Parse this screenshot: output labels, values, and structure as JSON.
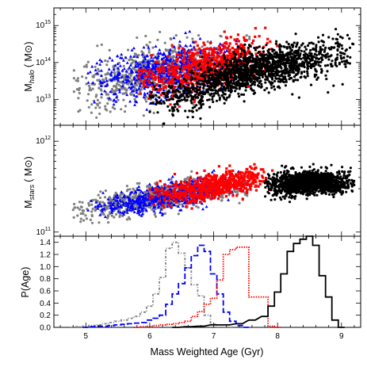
{
  "chart_data": [
    {
      "panel": "top",
      "type": "scatter",
      "ylabel_main": "M",
      "ylabel_sub": "halo",
      "ylabel_unit": "( M⊙)",
      "yscale": "log",
      "ylim": [
        2000000000000.0,
        3000000000000000.0
      ],
      "yticks": [
        {
          "value": 10000000000000.0,
          "base": "10",
          "exp": "13"
        },
        {
          "value": 100000000000000.0,
          "base": "10",
          "exp": "14"
        },
        {
          "value": 1000000000000000.0,
          "base": "10",
          "exp": "15"
        }
      ],
      "xlim": [
        4.5,
        9.3
      ],
      "series": [
        {
          "color": "#808080",
          "marker": "dot",
          "age_range": [
            4.8,
            7.6
          ],
          "n": 900,
          "trend": [
            [
              5.0,
              13.35
            ],
            [
              6.5,
              13.85
            ],
            [
              7.5,
              14.0
            ]
          ],
          "scatter": 0.35
        },
        {
          "color": "#0000ff",
          "marker": "triangle",
          "age_range": [
            5.0,
            7.5
          ],
          "n": 600,
          "trend": [
            [
              5.3,
              13.5
            ],
            [
              6.8,
              13.95
            ],
            [
              7.4,
              14.05
            ]
          ],
          "scatter": 0.35
        },
        {
          "color": "#ff0000",
          "marker": "square",
          "age_range": [
            5.8,
            8.0
          ],
          "n": 650,
          "trend": [
            [
              6.2,
              13.6
            ],
            [
              7.3,
              14.1
            ],
            [
              7.9,
              14.2
            ]
          ],
          "scatter": 0.3
        },
        {
          "color": "#000000",
          "marker": "dot",
          "age_range": [
            6.0,
            9.2
          ],
          "n": 1600,
          "trend": [
            [
              6.2,
              13.0
            ],
            [
              7.8,
              13.9
            ],
            [
              9.0,
              14.2
            ]
          ],
          "scatter": 0.28
        }
      ]
    },
    {
      "panel": "middle",
      "type": "scatter",
      "ylabel_main": "M",
      "ylabel_sub": "stars",
      "ylabel_unit": "( M⊙)",
      "yscale": "log",
      "ylim": [
        90000000000.0,
        1500000000000.0
      ],
      "yticks": [
        {
          "value": 100000000000.0,
          "base": "10",
          "exp": "11"
        },
        {
          "value": 1000000000000.0,
          "base": "10",
          "exp": "12"
        }
      ],
      "xlim": [
        4.5,
        9.3
      ],
      "series": [
        {
          "color": "#808080",
          "marker": "dot",
          "age_range": [
            4.8,
            7.6
          ],
          "n": 900,
          "trend": [
            [
              4.8,
              11.23
            ],
            [
              6.5,
              11.42
            ],
            [
              7.5,
              11.52
            ]
          ],
          "scatter": 0.07
        },
        {
          "color": "#0000ff",
          "marker": "triangle",
          "age_range": [
            5.0,
            7.5
          ],
          "n": 600,
          "trend": [
            [
              5.0,
              11.25
            ],
            [
              6.8,
              11.45
            ],
            [
              7.4,
              11.55
            ]
          ],
          "scatter": 0.07
        },
        {
          "color": "#ff0000",
          "marker": "square",
          "age_range": [
            6.0,
            8.0
          ],
          "n": 650,
          "trend": [
            [
              6.2,
              11.4
            ],
            [
              7.4,
              11.56
            ],
            [
              7.9,
              11.6
            ]
          ],
          "scatter": 0.07
        },
        {
          "color": "#000000",
          "marker": "dot",
          "age_range": [
            7.8,
            9.2
          ],
          "n": 1400,
          "trend": [
            [
              7.8,
              11.5
            ],
            [
              8.5,
              11.55
            ],
            [
              9.1,
              11.55
            ]
          ],
          "scatter": 0.06
        }
      ]
    },
    {
      "panel": "bottom",
      "type": "line",
      "ylabel": "P(Age)",
      "xlabel": "Mass Weighted Age (Gyr)",
      "xlim": [
        4.5,
        9.3
      ],
      "ylim": [
        0,
        1.5
      ],
      "xticks": [
        5,
        6,
        7,
        8,
        9
      ],
      "yticks": [
        0.0,
        0.2,
        0.4,
        0.6,
        0.8,
        1.0,
        1.2,
        1.4
      ],
      "series": [
        {
          "color": "#808080",
          "style": "dotdash",
          "x": [
            4.8,
            4.9,
            5.0,
            5.1,
            5.2,
            5.3,
            5.4,
            5.5,
            5.6,
            5.7,
            5.8,
            5.9,
            6.0,
            6.1,
            6.2,
            6.3,
            6.4,
            6.5,
            6.6,
            6.7,
            6.8,
            6.9,
            7.0,
            7.1,
            7.2,
            7.3
          ],
          "y": [
            0.0,
            0.01,
            0.02,
            0.03,
            0.04,
            0.06,
            0.08,
            0.1,
            0.12,
            0.15,
            0.18,
            0.25,
            0.35,
            0.55,
            0.82,
            1.3,
            1.4,
            1.22,
            0.98,
            0.7,
            0.52,
            0.2,
            0.05,
            0.0,
            0.0,
            0.0
          ]
        },
        {
          "color": "#0000ff",
          "style": "dashed",
          "x": [
            5.0,
            5.1,
            5.2,
            5.3,
            5.4,
            5.5,
            5.6,
            5.7,
            5.8,
            5.9,
            6.0,
            6.1,
            6.2,
            6.3,
            6.4,
            6.5,
            6.6,
            6.7,
            6.8,
            6.9,
            7.0,
            7.1,
            7.2,
            7.3,
            7.4,
            7.5
          ],
          "y": [
            0.0,
            0.01,
            0.02,
            0.02,
            0.03,
            0.04,
            0.05,
            0.06,
            0.07,
            0.08,
            0.12,
            0.15,
            0.2,
            0.38,
            0.55,
            0.72,
            0.98,
            1.18,
            1.35,
            1.25,
            0.88,
            0.55,
            0.25,
            0.1,
            0.03,
            0.0
          ]
        },
        {
          "color": "#ff0000",
          "style": "dotted",
          "x": [
            5.8,
            5.9,
            6.0,
            6.1,
            6.2,
            6.3,
            6.4,
            6.5,
            6.6,
            6.7,
            6.8,
            6.9,
            7.0,
            7.1,
            7.2,
            7.3,
            7.4,
            7.5,
            7.6,
            7.7,
            7.8,
            7.9,
            8.0
          ],
          "y": [
            0.0,
            0.01,
            0.02,
            0.03,
            0.04,
            0.05,
            0.06,
            0.08,
            0.1,
            0.18,
            0.26,
            0.38,
            0.48,
            0.78,
            1.2,
            1.28,
            1.32,
            1.32,
            0.5,
            0.5,
            0.5,
            0.02,
            0.0
          ]
        },
        {
          "color": "#000000",
          "style": "solid",
          "x": [
            6.4,
            6.6,
            6.8,
            7.0,
            7.2,
            7.4,
            7.6,
            7.8,
            7.9,
            8.0,
            8.1,
            8.2,
            8.3,
            8.4,
            8.5,
            8.6,
            8.7,
            8.8,
            8.9,
            9.0
          ],
          "y": [
            0.0,
            0.01,
            0.02,
            0.04,
            0.04,
            0.06,
            0.12,
            0.18,
            0.35,
            0.58,
            0.88,
            1.25,
            1.38,
            1.45,
            1.5,
            1.35,
            0.85,
            0.5,
            0.12,
            0.0
          ]
        }
      ]
    }
  ]
}
